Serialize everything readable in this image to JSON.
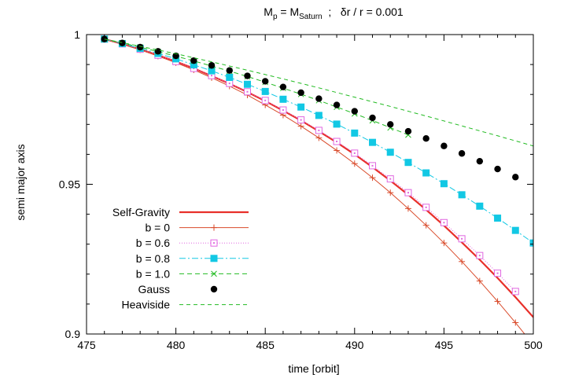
{
  "chart_data": {
    "type": "line",
    "title": {
      "main": "M",
      "main_sub": "p",
      "eq": " = M",
      "eq_sub": "Saturn",
      "rest": "  ;   δr / r = 0.001"
    },
    "xlabel": "time [orbit]",
    "ylabel": "semi major axis",
    "xlim": [
      475,
      500
    ],
    "ylim": [
      0.9,
      1.0
    ],
    "x_ticks": [
      475,
      480,
      485,
      490,
      495,
      500
    ],
    "x_tick_labels": [
      "475",
      "480",
      "485",
      "490",
      "495",
      "500"
    ],
    "y_ticks": [
      0.9,
      0.95,
      1.0
    ],
    "y_tick_labels": [
      "0.9",
      "0.95",
      "1"
    ],
    "legend_position": "bottom-left",
    "series": [
      {
        "name": "Self-Gravity",
        "style": "line",
        "marker": "none",
        "dash": "",
        "line_width": 2.2,
        "color": "#e8302a",
        "x": [
          476,
          477,
          478,
          479,
          480,
          481,
          482,
          483,
          484,
          485,
          486,
          487,
          488,
          489,
          490,
          491,
          492,
          493,
          494,
          495,
          496,
          497,
          498,
          499,
          500
        ],
        "y": [
          0.9985,
          0.9969,
          0.9951,
          0.9931,
          0.991,
          0.9887,
          0.9862,
          0.9836,
          0.9808,
          0.9778,
          0.9746,
          0.9713,
          0.9677,
          0.964,
          0.96,
          0.9557,
          0.9512,
          0.9465,
          0.9415,
          0.9362,
          0.9306,
          0.9248,
          0.9187,
          0.9123,
          0.9056
        ]
      },
      {
        "name": "b = 0",
        "style": "linepoints",
        "marker": "plus",
        "dash": "",
        "line_width": 1,
        "color": "#d94a2a",
        "x": [
          476,
          477,
          478,
          479,
          480,
          481,
          482,
          483,
          484,
          485,
          486,
          487,
          488,
          489,
          490,
          491,
          492,
          493,
          494,
          495,
          496,
          497,
          498,
          499,
          500
        ],
        "y": [
          0.9985,
          0.9968,
          0.9949,
          0.9928,
          0.9906,
          0.9882,
          0.9856,
          0.9828,
          0.9798,
          0.9765,
          0.9731,
          0.9694,
          0.9655,
          0.9613,
          0.9569,
          0.9522,
          0.9472,
          0.9419,
          0.9363,
          0.9304,
          0.9242,
          0.9177,
          0.9109,
          0.9038,
          0.8964
        ]
      },
      {
        "name": "b = 0.6",
        "style": "linepoints",
        "marker": "open-square",
        "dash": "1,2",
        "line_width": 1,
        "color": "#e066e0",
        "x": [
          476,
          477,
          478,
          479,
          480,
          481,
          482,
          483,
          484,
          485,
          486,
          487,
          488,
          489,
          490,
          491,
          492,
          493,
          494,
          495,
          496,
          497,
          498,
          499
        ],
        "y": [
          0.9985,
          0.9969,
          0.9951,
          0.9931,
          0.991,
          0.9887,
          0.9863,
          0.9837,
          0.9809,
          0.978,
          0.9748,
          0.9715,
          0.968,
          0.9643,
          0.9604,
          0.9562,
          0.9518,
          0.9472,
          0.9423,
          0.9372,
          0.9318,
          0.9262,
          0.9203,
          0.9142
        ]
      },
      {
        "name": "b = 0.8",
        "style": "linepoints",
        "marker": "filled-square",
        "dash": "8,3,2,3",
        "line_width": 1,
        "color": "#12c8e4",
        "x": [
          476,
          477,
          478,
          479,
          480,
          481,
          482,
          483,
          484,
          485,
          486,
          487,
          488,
          489,
          490,
          491,
          492,
          493,
          494,
          495,
          496,
          497,
          498,
          499,
          500
        ],
        "y": [
          0.9985,
          0.997,
          0.9954,
          0.9937,
          0.9919,
          0.9899,
          0.9879,
          0.9857,
          0.9834,
          0.981,
          0.9784,
          0.9758,
          0.973,
          0.9701,
          0.9671,
          0.964,
          0.9607,
          0.9573,
          0.9538,
          0.9502,
          0.9465,
          0.9427,
          0.9387,
          0.9346,
          0.9304
        ]
      },
      {
        "name": "b = 1.0",
        "style": "linepoints",
        "marker": "cross",
        "dash": "6,4",
        "line_width": 1,
        "color": "#22bb22",
        "x": [
          476,
          477,
          478,
          479,
          480,
          481,
          482,
          483,
          484,
          485,
          486,
          487,
          488,
          489,
          490,
          491,
          492,
          493
        ],
        "y": [
          0.9985,
          0.9972,
          0.9958,
          0.9943,
          0.9928,
          0.9912,
          0.9895,
          0.9878,
          0.986,
          0.9841,
          0.9821,
          0.9801,
          0.978,
          0.9758,
          0.9736,
          0.9713,
          0.9689,
          0.9665
        ]
      },
      {
        "name": "Gauss",
        "style": "points",
        "marker": "filled-circle",
        "dash": "",
        "line_width": 1,
        "color": "#000000",
        "x": [
          476,
          477,
          478,
          479,
          480,
          481,
          482,
          483,
          484,
          485,
          486,
          487,
          488,
          489,
          490,
          491,
          492,
          493,
          494,
          495,
          496,
          497,
          498,
          499
        ],
        "y": [
          0.9985,
          0.9972,
          0.9958,
          0.9944,
          0.9929,
          0.9913,
          0.9897,
          0.988,
          0.9862,
          0.9844,
          0.9825,
          0.9806,
          0.9786,
          0.9765,
          0.9744,
          0.9722,
          0.97,
          0.9677,
          0.9653,
          0.9628,
          0.9603,
          0.9577,
          0.9551,
          0.9524
        ]
      },
      {
        "name": "Heaviside",
        "style": "line",
        "marker": "none",
        "dash": "5,4",
        "line_width": 1,
        "color": "#22bb22",
        "x": [
          476,
          478,
          480,
          482,
          484,
          486,
          488,
          490,
          492,
          494,
          496,
          498,
          500
        ],
        "y": [
          0.9985,
          0.9961,
          0.9936,
          0.9909,
          0.9881,
          0.9852,
          0.9822,
          0.9791,
          0.976,
          0.9728,
          0.9695,
          0.9662,
          0.9628
        ]
      }
    ]
  }
}
